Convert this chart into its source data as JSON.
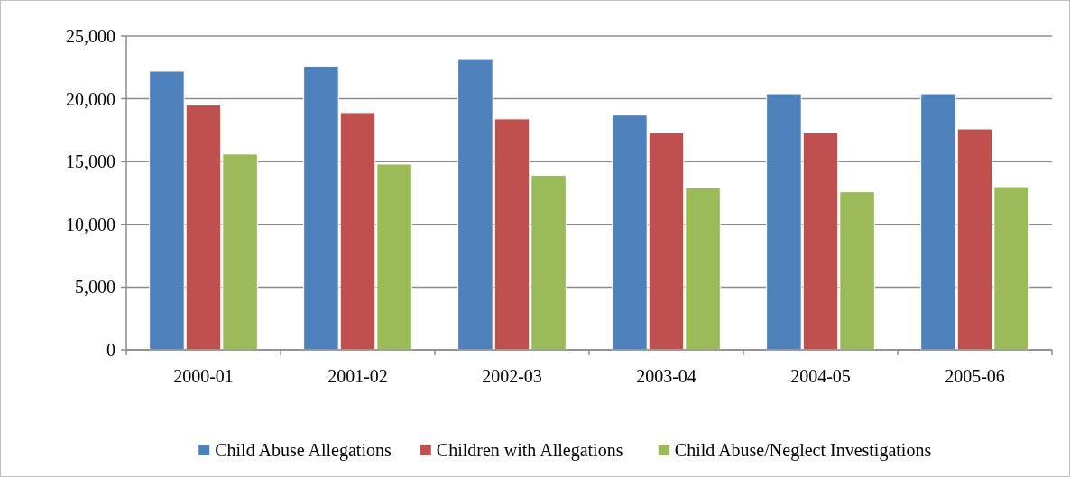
{
  "chart_data": {
    "type": "bar",
    "categories": [
      "2000-01",
      "2001-02",
      "2002-03",
      "2003-04",
      "2004-05",
      "2005-06"
    ],
    "series": [
      {
        "name": "Child Abuse Allegations",
        "color": "#4f81bd",
        "values": [
          22200,
          22600,
          23200,
          18700,
          20400,
          20400
        ]
      },
      {
        "name": "Children with Allegations",
        "color": "#c0504d",
        "values": [
          19500,
          18900,
          18400,
          17300,
          17300,
          17600
        ]
      },
      {
        "name": "Child Abuse/Neglect  Investigations",
        "color": "#9bbb59",
        "values": [
          15600,
          14800,
          13900,
          12900,
          12600,
          13000
        ]
      }
    ],
    "ylim": [
      0,
      25000
    ],
    "yticks": [
      {
        "value": 0,
        "label": "0"
      },
      {
        "value": 5000,
        "label": "5,000"
      },
      {
        "value": 10000,
        "label": "10,000"
      },
      {
        "value": 15000,
        "label": "15,000"
      },
      {
        "value": 20000,
        "label": "20,000"
      },
      {
        "value": 25000,
        "label": "25,000"
      }
    ],
    "grid": "y",
    "legend": "bottom"
  }
}
